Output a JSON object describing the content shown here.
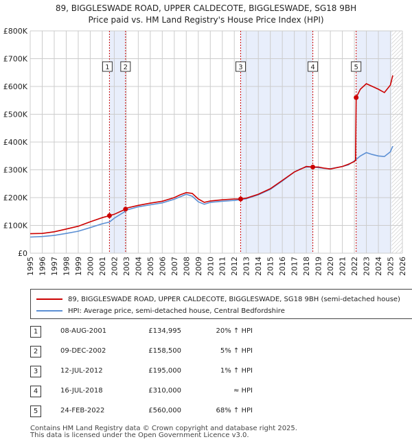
{
  "header": {
    "title": "89, BIGGLESWADE ROAD, UPPER CALDECOTE, BIGGLESWADE, SG18 9BH",
    "subtitle": "Price paid vs. HM Land Registry's House Price Index (HPI)"
  },
  "legend": {
    "property_label": "89, BIGGLESWADE ROAD, UPPER CALDECOTE, BIGGLESWADE, SG18 9BH (semi-detached house)",
    "hpi_label": "HPI: Average price, semi-detached house, Central Bedfordshire"
  },
  "transactions": [
    {
      "num": "1",
      "date": "08-AUG-2001",
      "price": "£134,995",
      "hpi": "20% ↑ HPI"
    },
    {
      "num": "2",
      "date": "09-DEC-2002",
      "price": "£158,500",
      "hpi": "5% ↑ HPI"
    },
    {
      "num": "3",
      "date": "12-JUL-2012",
      "price": "£195,000",
      "hpi": "1% ↑ HPI"
    },
    {
      "num": "4",
      "date": "16-JUL-2018",
      "price": "£310,000",
      "hpi": "≈ HPI"
    },
    {
      "num": "5",
      "date": "24-FEB-2022",
      "price": "£560,000",
      "hpi": "68% ↑ HPI"
    }
  ],
  "footer": {
    "line1": "Contains HM Land Registry data © Crown copyright and database right 2025.",
    "line2": "This data is licensed under the Open Government Licence v3.0."
  },
  "colors": {
    "property": "#cc0000",
    "hpi": "#5b8fd4",
    "shade": "#e8eefb",
    "grid": "#cccccc",
    "vline": "#cc0000"
  },
  "chart_data": {
    "type": "line",
    "xlim": [
      1995,
      2026
    ],
    "ylim": [
      0,
      800000
    ],
    "x_ticks": [
      1995,
      1996,
      1997,
      1998,
      1999,
      2000,
      2001,
      2002,
      2003,
      2004,
      2005,
      2006,
      2007,
      2008,
      2009,
      2010,
      2011,
      2012,
      2013,
      2014,
      2015,
      2016,
      2017,
      2018,
      2019,
      2020,
      2021,
      2022,
      2023,
      2024,
      2025,
      2026
    ],
    "y_ticks": [
      {
        "value": 0,
        "label": "£0"
      },
      {
        "value": 100000,
        "label": "£100K"
      },
      {
        "value": 200000,
        "label": "£200K"
      },
      {
        "value": 300000,
        "label": "£300K"
      },
      {
        "value": 400000,
        "label": "£400K"
      },
      {
        "value": 500000,
        "label": "£500K"
      },
      {
        "value": 600000,
        "label": "£600K"
      },
      {
        "value": 700000,
        "label": "£700K"
      },
      {
        "value": 800000,
        "label": "£800K"
      }
    ],
    "grid": true,
    "shaded_ranges": [
      [
        2001.6,
        2002.94
      ],
      [
        2012.53,
        2018.54
      ],
      [
        2022.15,
        2025.1
      ]
    ],
    "forecast_hatch_from": 2025.1,
    "sales": [
      {
        "label": "1",
        "x": 2001.6,
        "y": 134995
      },
      {
        "label": "2",
        "x": 2002.94,
        "y": 158500
      },
      {
        "label": "3",
        "x": 2012.53,
        "y": 195000
      },
      {
        "label": "4",
        "x": 2018.54,
        "y": 310000
      },
      {
        "label": "5",
        "x": 2022.15,
        "y": 560000
      }
    ],
    "series": [
      {
        "name": "89, BIGGLESWADE ROAD, UPPER CALDECOTE, BIGGLESWADE, SG18 9BH (semi-detached house)",
        "color": "#cc0000",
        "points": [
          [
            1995,
            70000
          ],
          [
            1996,
            71000
          ],
          [
            1997,
            77000
          ],
          [
            1998,
            87000
          ],
          [
            1999,
            97000
          ],
          [
            2000,
            113000
          ],
          [
            2001,
            128000
          ],
          [
            2001.6,
            134995
          ],
          [
            2002,
            140000
          ],
          [
            2002.94,
            158500
          ],
          [
            2003,
            162000
          ],
          [
            2004,
            172000
          ],
          [
            2005,
            180000
          ],
          [
            2006,
            187000
          ],
          [
            2007,
            200000
          ],
          [
            2007.5,
            210000
          ],
          [
            2008,
            218000
          ],
          [
            2008.5,
            215000
          ],
          [
            2009,
            195000
          ],
          [
            2009.5,
            183000
          ],
          [
            2010,
            188000
          ],
          [
            2011,
            192000
          ],
          [
            2012,
            195000
          ],
          [
            2012.53,
            195000
          ],
          [
            2013,
            198000
          ],
          [
            2014,
            212000
          ],
          [
            2015,
            232000
          ],
          [
            2016,
            262000
          ],
          [
            2017,
            292000
          ],
          [
            2017.5,
            302000
          ],
          [
            2018,
            312000
          ],
          [
            2018.54,
            310000
          ],
          [
            2019,
            310000
          ],
          [
            2019.5,
            306000
          ],
          [
            2020,
            303000
          ],
          [
            2021,
            312000
          ],
          [
            2021.5,
            320000
          ],
          [
            2022,
            330000
          ],
          [
            2022.1,
            335000
          ],
          [
            2022.15,
            560000
          ],
          [
            2022.5,
            590000
          ],
          [
            2023,
            610000
          ],
          [
            2023.5,
            600000
          ],
          [
            2024,
            590000
          ],
          [
            2024.5,
            578000
          ],
          [
            2025,
            605000
          ],
          [
            2025.2,
            640000
          ]
        ]
      },
      {
        "name": "HPI: Average price, semi-detached house, Central Bedfordshire",
        "color": "#5b8fd4",
        "points": [
          [
            1995,
            58000
          ],
          [
            1996,
            60000
          ],
          [
            1997,
            64000
          ],
          [
            1998,
            71000
          ],
          [
            1999,
            79000
          ],
          [
            2000,
            92000
          ],
          [
            2001,
            106000
          ],
          [
            2001.6,
            112000
          ],
          [
            2002,
            126000
          ],
          [
            2002.94,
            151000
          ],
          [
            2003,
            155000
          ],
          [
            2004,
            167000
          ],
          [
            2005,
            174000
          ],
          [
            2006,
            181000
          ],
          [
            2007,
            194000
          ],
          [
            2007.5,
            203000
          ],
          [
            2008,
            212000
          ],
          [
            2008.5,
            205000
          ],
          [
            2009,
            185000
          ],
          [
            2009.5,
            176000
          ],
          [
            2010,
            183000
          ],
          [
            2011,
            187000
          ],
          [
            2012,
            190000
          ],
          [
            2012.53,
            193000
          ],
          [
            2013,
            196000
          ],
          [
            2014,
            210000
          ],
          [
            2015,
            230000
          ],
          [
            2016,
            260000
          ],
          [
            2017,
            292000
          ],
          [
            2017.5,
            303000
          ],
          [
            2018,
            310000
          ],
          [
            2018.54,
            310000
          ],
          [
            2019,
            308000
          ],
          [
            2019.5,
            305000
          ],
          [
            2020,
            304000
          ],
          [
            2021,
            312000
          ],
          [
            2021.5,
            318000
          ],
          [
            2022,
            332000
          ],
          [
            2022.5,
            350000
          ],
          [
            2023,
            362000
          ],
          [
            2023.5,
            355000
          ],
          [
            2024,
            350000
          ],
          [
            2024.5,
            348000
          ],
          [
            2025,
            365000
          ],
          [
            2025.2,
            385000
          ]
        ]
      }
    ]
  }
}
